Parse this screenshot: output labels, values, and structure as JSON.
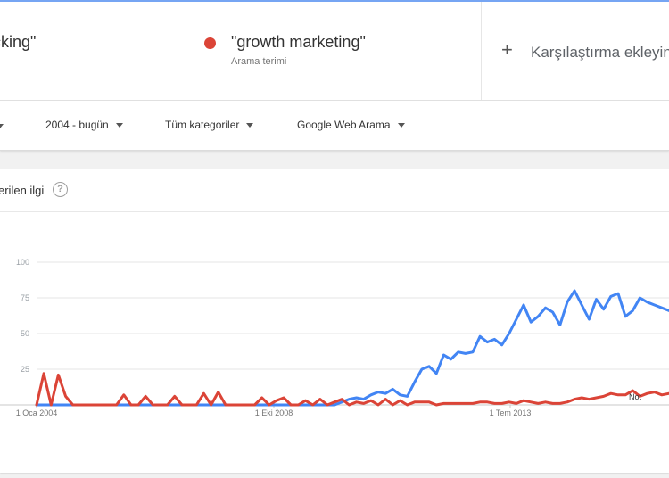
{
  "terms": [
    {
      "label": "cking\"",
      "color": "#4285f4"
    },
    {
      "label": "\"growth marketing\"",
      "sublabel": "Arama terimi",
      "color": "#db4437"
    }
  ],
  "add_compare": {
    "label": "Karşılaştırma ekleyin",
    "icon": "plus-icon"
  },
  "filters": [
    {
      "label": "2004 - bugün"
    },
    {
      "label": "Tüm kategoriler"
    },
    {
      "label": "Google Web Arama"
    }
  ],
  "chart_card": {
    "title": "erilen ilgi",
    "help_icon": "?"
  },
  "chart_data": {
    "type": "line",
    "x_tick_labels": [
      "1 Oca 2004",
      "1 Eki 2008",
      "1 Tem 2013"
    ],
    "y_tick_labels": [
      "100",
      "75",
      "50",
      "25"
    ],
    "ylim": [
      0,
      100
    ],
    "grid": true,
    "annotation": "Not",
    "series": [
      {
        "color": "#4285f4",
        "x": [
          0,
          41,
          42,
          43,
          44,
          45,
          46,
          47,
          48,
          49,
          50,
          51,
          52,
          53,
          54,
          55,
          56,
          57,
          58,
          59,
          60,
          61,
          62,
          63,
          64,
          65,
          66,
          67,
          68,
          69,
          70,
          71,
          72,
          73,
          74,
          75,
          76,
          77,
          78,
          79,
          80,
          81,
          82,
          83,
          84,
          85,
          86,
          87
        ],
        "values": [
          0,
          0,
          2,
          4,
          5,
          4,
          7,
          9,
          8,
          11,
          7,
          6,
          16,
          25,
          27,
          22,
          35,
          32,
          37,
          36,
          37,
          48,
          44,
          46,
          42,
          50,
          60,
          70,
          58,
          62,
          68,
          65,
          56,
          72,
          80,
          70,
          60,
          74,
          67,
          76,
          78,
          62,
          66,
          75,
          72,
          70,
          68,
          66
        ]
      },
      {
        "color": "#db4437",
        "x": [
          0,
          1,
          2,
          3,
          4,
          5,
          6,
          7,
          8,
          9,
          10,
          11,
          12,
          13,
          14,
          15,
          16,
          17,
          18,
          19,
          20,
          21,
          22,
          23,
          24,
          25,
          26,
          27,
          28,
          29,
          30,
          31,
          32,
          33,
          34,
          35,
          36,
          37,
          38,
          39,
          40,
          41,
          42,
          43,
          44,
          45,
          46,
          47,
          48,
          49,
          50,
          51,
          52,
          53,
          54,
          55,
          56,
          57,
          58,
          59,
          60,
          61,
          62,
          63,
          64,
          65,
          66,
          67,
          68,
          69,
          70,
          71,
          72,
          73,
          74,
          75,
          76,
          77,
          78,
          79,
          80,
          81,
          82,
          83,
          84,
          85,
          86,
          87
        ],
        "values": [
          0,
          22,
          0,
          21,
          6,
          0,
          0,
          0,
          0,
          0,
          0,
          0,
          7,
          0,
          0,
          6,
          0,
          0,
          0,
          6,
          0,
          0,
          0,
          8,
          0,
          9,
          0,
          0,
          0,
          0,
          0,
          5,
          0,
          3,
          5,
          0,
          0,
          3,
          0,
          4,
          0,
          2,
          4,
          0,
          2,
          1,
          3,
          0,
          4,
          0,
          3,
          0,
          2,
          2,
          2,
          0,
          1,
          1,
          1,
          1,
          1,
          2,
          2,
          1,
          1,
          2,
          1,
          3,
          2,
          1,
          2,
          1,
          1,
          2,
          4,
          5,
          4,
          5,
          6,
          8,
          7,
          7,
          10,
          6,
          8,
          9,
          7,
          8
        ]
      }
    ]
  }
}
